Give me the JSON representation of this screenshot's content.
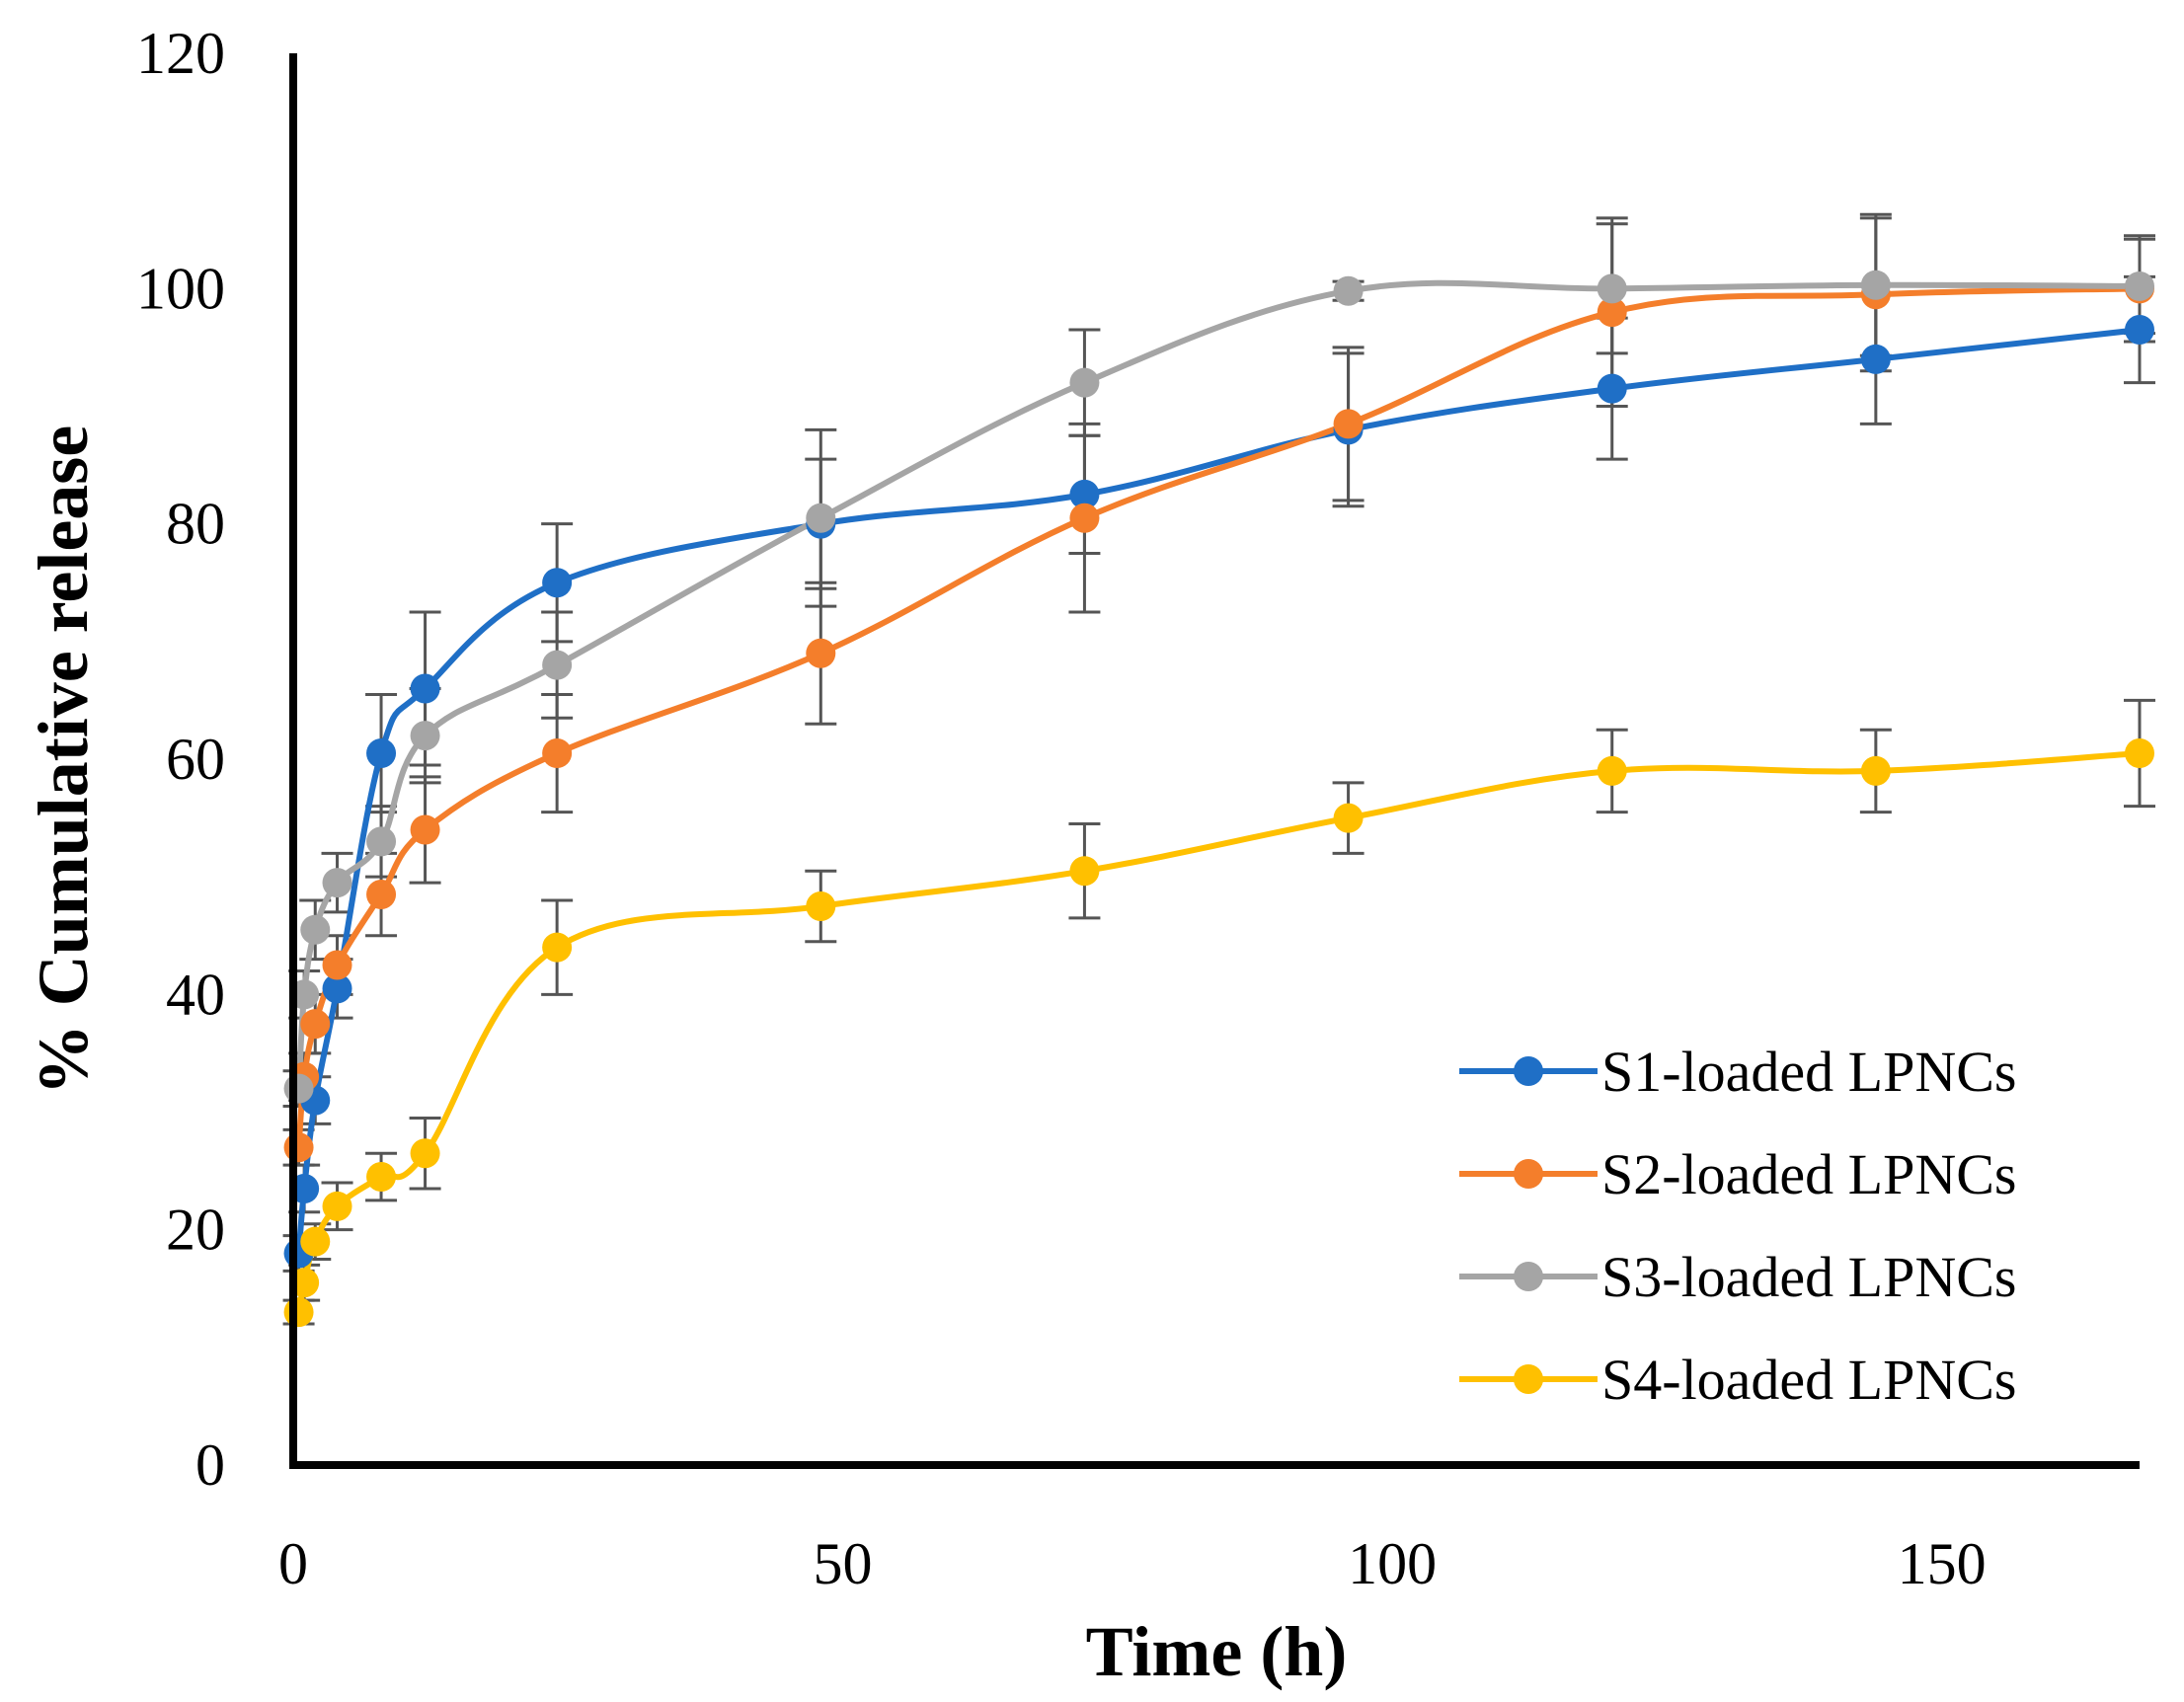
{
  "chart_data": {
    "type": "line",
    "title": "",
    "xlabel": "Time (h)",
    "ylabel": "% Cumulative release",
    "xlim": [
      0,
      168
    ],
    "ylim": [
      0,
      120
    ],
    "xticks": [
      0,
      50,
      100,
      150
    ],
    "yticks": [
      0,
      20,
      40,
      60,
      80,
      100,
      120
    ],
    "grid": false,
    "legend_position": "bottom-right",
    "x": [
      0.5,
      1,
      2,
      4,
      8,
      12,
      24,
      48,
      72,
      96,
      120,
      144,
      168
    ],
    "series": [
      {
        "name": "S1-loaded LPNCs",
        "color": "#1f6fc6",
        "values": [
          18,
          23.5,
          31,
          40.5,
          60.5,
          66,
          75,
          80,
          82.5,
          88,
          91.5,
          94,
          96.5
        ],
        "errors": [
          1.5,
          2.0,
          2.0,
          2.5,
          5.0,
          6.5,
          5.0,
          5.5,
          5.0,
          6.5,
          6.0,
          5.5,
          4.5
        ]
      },
      {
        "name": "S2-loaded LPNCs",
        "color": "#f47e2b",
        "values": [
          27,
          33,
          37.5,
          42.5,
          48.5,
          54,
          60.5,
          69,
          80.5,
          88.5,
          98,
          99.5,
          100
        ],
        "errors": [
          1.5,
          2.0,
          2.5,
          2.5,
          3.5,
          4.5,
          5.0,
          6.0,
          8.0,
          6.5,
          8.0,
          6.5,
          4.5
        ]
      },
      {
        "name": "S3-loaded LPNCs",
        "color": "#a5a5a5",
        "values": [
          32,
          40,
          45.5,
          49.5,
          53,
          62,
          68,
          80.5,
          92,
          99.8,
          100,
          100.3,
          100.2
        ],
        "errors": [
          1.5,
          2.0,
          2.5,
          2.5,
          3.0,
          4.0,
          4.5,
          7.5,
          4.5,
          0.8,
          5.5,
          6.0,
          4.0
        ]
      },
      {
        "name": "S4-loaded LPNCs",
        "color": "#ffc000",
        "values": [
          13,
          15.5,
          19,
          22,
          24.5,
          26.5,
          44,
          47.5,
          50.5,
          55,
          59,
          59,
          60.5
        ],
        "errors": [
          1.0,
          1.5,
          1.5,
          2.0,
          2.0,
          3.0,
          4.0,
          3.0,
          4.0,
          3.0,
          3.5,
          3.5,
          4.5
        ]
      }
    ]
  }
}
